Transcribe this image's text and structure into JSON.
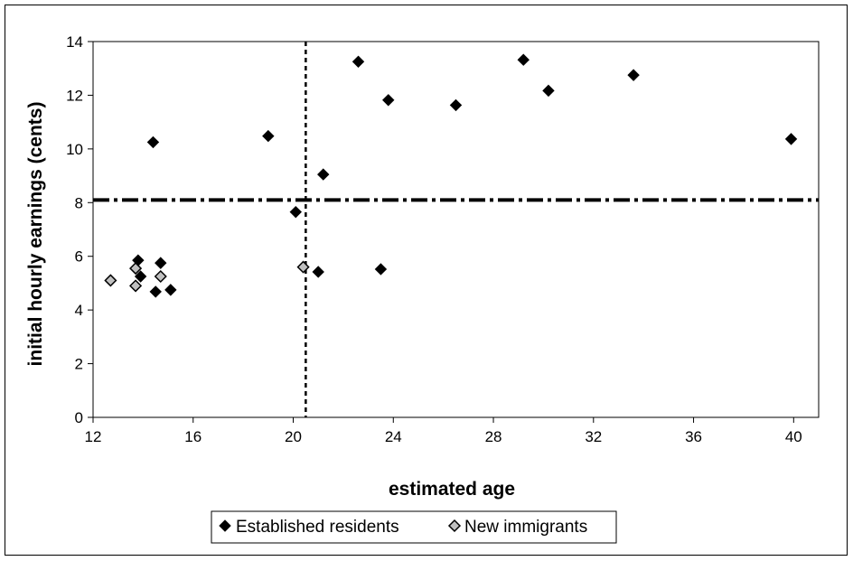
{
  "chart_data": {
    "type": "scatter",
    "xlabel": "estimated age",
    "ylabel": "initial hourly earnings (cents)",
    "xlim": [
      12,
      41
    ],
    "ylim": [
      0,
      14
    ],
    "x_ticks": [
      12,
      16,
      20,
      24,
      28,
      32,
      36,
      40
    ],
    "y_ticks": [
      0,
      2,
      4,
      6,
      8,
      10,
      12,
      14
    ],
    "grid": false,
    "legend_position": "bottom",
    "reference_lines": {
      "vertical_x": 20.5,
      "horizontal_y": 8.1
    },
    "series": [
      {
        "name": "Established residents",
        "marker": "filled-diamond",
        "color": "#000000",
        "points": [
          {
            "x": 14.4,
            "y": 10.25
          },
          {
            "x": 19.0,
            "y": 10.48
          },
          {
            "x": 21.2,
            "y": 9.05
          },
          {
            "x": 22.6,
            "y": 13.25
          },
          {
            "x": 23.8,
            "y": 11.82
          },
          {
            "x": 26.5,
            "y": 11.63
          },
          {
            "x": 29.2,
            "y": 13.32
          },
          {
            "x": 30.2,
            "y": 12.17
          },
          {
            "x": 33.6,
            "y": 12.75
          },
          {
            "x": 39.9,
            "y": 10.37
          },
          {
            "x": 20.1,
            "y": 7.65
          },
          {
            "x": 13.8,
            "y": 5.85
          },
          {
            "x": 14.7,
            "y": 5.75
          },
          {
            "x": 13.9,
            "y": 5.25
          },
          {
            "x": 14.5,
            "y": 4.68
          },
          {
            "x": 15.1,
            "y": 4.75
          },
          {
            "x": 21.0,
            "y": 5.42
          },
          {
            "x": 23.5,
            "y": 5.52
          }
        ]
      },
      {
        "name": "New immigrants",
        "marker": "hollow-diamond",
        "color": "#c0c0c0",
        "points": [
          {
            "x": 12.7,
            "y": 5.1
          },
          {
            "x": 13.7,
            "y": 5.55
          },
          {
            "x": 13.7,
            "y": 4.9
          },
          {
            "x": 14.7,
            "y": 5.25
          },
          {
            "x": 20.4,
            "y": 5.6
          }
        ]
      }
    ]
  }
}
